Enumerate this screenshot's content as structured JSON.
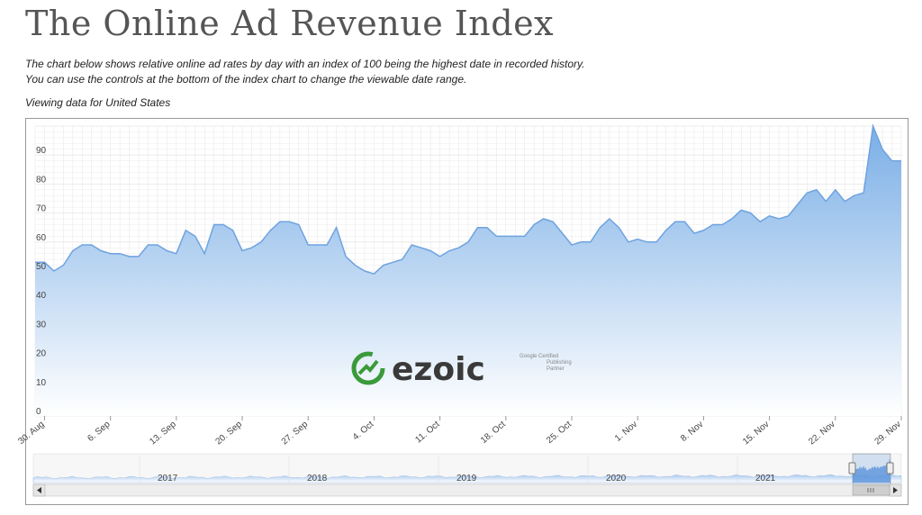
{
  "page": {
    "title": "The Online Ad Revenue Index",
    "description_line1": "The chart below shows relative online ad rates by day with an index of 100 being the highest date in recorded history.",
    "description_line2": "You can use the controls at the bottom of the index chart to change the viewable date range.",
    "viewing": "Viewing data for United States"
  },
  "logo": {
    "brand": "ezoic",
    "badge_line1": "Google Certified",
    "badge_line2": "Publishing",
    "badge_line3": "Partner"
  },
  "colors": {
    "area_top": "#7aaee6",
    "area_bottom": "#ffffff",
    "line": "#6ea3df",
    "grid": "#e6e6e6",
    "logo_green": "#3a9a3a",
    "logo_text": "#3a3a3a"
  },
  "chart_data": {
    "type": "area",
    "x_ticks": [
      "30. Aug",
      "6. Sep",
      "13. Sep",
      "20. Sep",
      "27. Sep",
      "4. Oct",
      "11. Oct",
      "18. Oct",
      "25. Oct",
      "1. Nov",
      "8. Nov",
      "15. Nov",
      "22. Nov",
      "29. Nov"
    ],
    "y_ticks": [
      0,
      10,
      20,
      30,
      40,
      50,
      60,
      70,
      80,
      90
    ],
    "ylim": [
      0,
      100
    ],
    "grid": true,
    "x_start": "2021-08-29",
    "series": [
      {
        "values": [
          53,
          53,
          50,
          52,
          57,
          59,
          59,
          57,
          56,
          56,
          55,
          55,
          59,
          59,
          57,
          56,
          64,
          62,
          56,
          66,
          66,
          64,
          57,
          58,
          60,
          64,
          67,
          67,
          66,
          59,
          59,
          59,
          65,
          55,
          52,
          50,
          49,
          52,
          53,
          54,
          59,
          58,
          57,
          55,
          57,
          58,
          60,
          65,
          65,
          62,
          62,
          62,
          62,
          66,
          68,
          67,
          63,
          59,
          60,
          60,
          65,
          68,
          65,
          60,
          61,
          60,
          60,
          64,
          67,
          67,
          63,
          64,
          66,
          66,
          68,
          71,
          70,
          67,
          69,
          68,
          69,
          73,
          77,
          78,
          74,
          78,
          74,
          76,
          77,
          100,
          92,
          88,
          88
        ]
      }
    ],
    "navigator": {
      "year_labels": [
        "2017",
        "2018",
        "2019",
        "2020",
        "2021"
      ]
    }
  }
}
